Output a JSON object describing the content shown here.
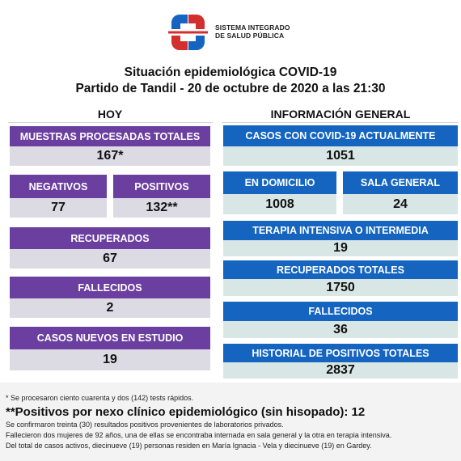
{
  "header": {
    "org_line1": "SISTEMA INTEGRADO",
    "org_line2": "DE SALUD PÚBLICA",
    "title": "Situación epidemiológica COVID-19",
    "subtitle": "Partido de Tandil - 20 de octubre de 2020 a las 21:30"
  },
  "hoy": {
    "heading": "HOY",
    "muestras": {
      "label": "MUESTRAS PROCESADAS TOTALES",
      "value": "167*"
    },
    "negativos": {
      "label": "NEGATIVOS",
      "value": "77"
    },
    "positivos": {
      "label": "POSITIVOS",
      "value": "132**"
    },
    "recuperados": {
      "label": "RECUPERADOS",
      "value": "67"
    },
    "fallecidos": {
      "label": "FALLECIDOS",
      "value": "2"
    },
    "casos_nuevos": {
      "label": "CASOS NUEVOS EN ESTUDIO",
      "value": "19"
    }
  },
  "general": {
    "heading": "INFORMACIÓN GENERAL",
    "casos_actuales": {
      "label": "CASOS CON COVID-19 ACTUALMENTE",
      "value": "1051"
    },
    "domicilio": {
      "label": "EN DOMICILIO",
      "value": "1008"
    },
    "sala_general": {
      "label": "SALA GENERAL",
      "value": "24"
    },
    "terapia": {
      "label": "TERAPIA INTENSIVA O INTERMEDIA",
      "value": "19"
    },
    "recuperados_totales": {
      "label": "RECUPERADOS TOTALES",
      "value": "1750"
    },
    "fallecidos": {
      "label": "FALLECIDOS",
      "value": "36"
    },
    "historial": {
      "label": "HISTORIAL DE POSITIVOS TOTALES",
      "value": "2837"
    }
  },
  "footer": {
    "note1": "* Se procesaron ciento cuarenta y dos (142) tests rápidos.",
    "big_note": "**Positivos por nexo clínico epidemiológico (sin hisopado): 12",
    "note2": "Se confirmaron treinta (30) resultados positivos provenientes de laboratorios privados.",
    "note3": "Fallecieron dos mujeres de 92 años, una de ellas se encontraba internada en sala general y la otra  en terapia intensiva.",
    "note4": "Del total de casos activos, diecinueve (19) personas residen en María Ignacia - Vela y diecinueve (19) en Gardey."
  },
  "colors": {
    "purple": "#6b3fa0",
    "blue": "#1565c0",
    "logo_red": "#d32f2f",
    "logo_blue": "#1565c0"
  }
}
